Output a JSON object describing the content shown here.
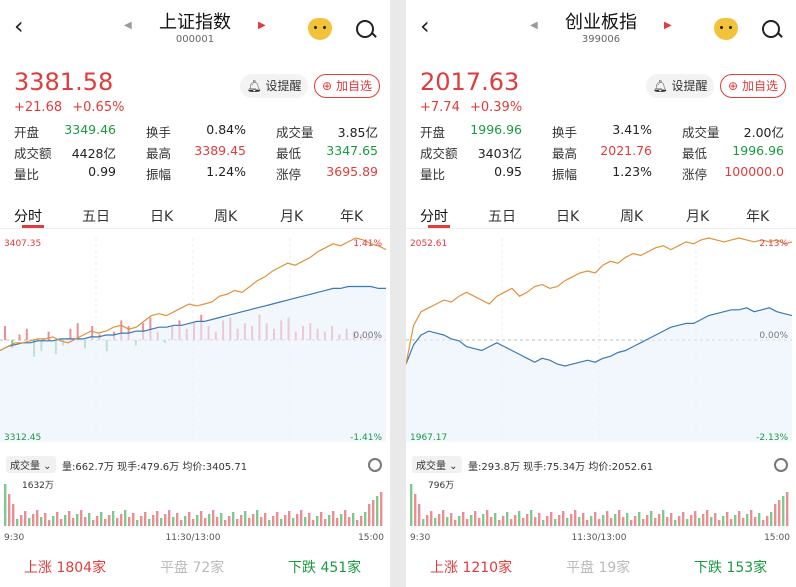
{
  "colors": {
    "up": "#e23b3b",
    "down": "#1a9a3f",
    "line": "#e0913b",
    "avg": "#3a78b8"
  },
  "panels": [
    {
      "title": "上证指数",
      "code": "000001",
      "price": "3381.58",
      "change": "+21.68",
      "change_pct": "+0.65%",
      "remind_label": "设提醒",
      "fav_label": "加自选",
      "stats": [
        [
          {
            "l": "开盘",
            "v": "3349.46",
            "c": "g"
          },
          {
            "l": "换手",
            "v": "0.84%",
            "c": "k"
          },
          {
            "l": "成交量",
            "v": "3.85亿",
            "c": "k"
          }
        ],
        [
          {
            "l": "成交额",
            "v": "4428亿",
            "c": "k"
          },
          {
            "l": "最高",
            "v": "3389.45",
            "c": "r"
          },
          {
            "l": "最低",
            "v": "3347.65",
            "c": "g"
          }
        ],
        [
          {
            "l": "量比",
            "v": "0.99",
            "c": "k"
          },
          {
            "l": "振幅",
            "v": "1.24%",
            "c": "k"
          },
          {
            "l": "涨停",
            "v": "3695.89",
            "c": "r"
          }
        ]
      ],
      "tabs": [
        "分时",
        "五日",
        "日K",
        "周K",
        "月K",
        "年K"
      ],
      "y_top": "3407.35",
      "y_bottom": "3312.45",
      "pct_top": "1.41%",
      "pct_mid": "0.00%",
      "pct_bottom": "-1.41%",
      "vol_label": "成交量",
      "vol_info": "量:662.7万  现手:479.6万  均价:3405.71",
      "vol_max": "1632万",
      "time_start": "9:30",
      "time_mid": "11:30/13:00",
      "time_end": "15:00",
      "up_label": "上涨",
      "up_count": "1804家",
      "flat_label": "平盘",
      "flat_count": "72家",
      "down_label": "下跌",
      "down_count": "451家",
      "price_series": [
        0.42,
        0.44,
        0.46,
        0.46,
        0.47,
        0.48,
        0.48,
        0.49,
        0.47,
        0.46,
        0.48,
        0.5,
        0.52,
        0.51,
        0.52,
        0.54,
        0.55,
        0.53,
        0.54,
        0.57,
        0.6,
        0.61,
        0.6,
        0.62,
        0.64,
        0.66,
        0.65,
        0.66,
        0.67,
        0.7,
        0.71,
        0.73,
        0.72,
        0.75,
        0.78,
        0.8,
        0.83,
        0.85,
        0.87,
        0.86,
        0.88,
        0.9,
        0.93,
        0.95,
        0.97,
        0.96,
        0.98,
        1.0,
        0.99,
        0.97,
        0.96,
        0.94
      ],
      "avg_series": [
        0.42,
        0.44,
        0.45,
        0.46,
        0.46,
        0.47,
        0.47,
        0.47,
        0.48,
        0.48,
        0.48,
        0.48,
        0.49,
        0.49,
        0.5,
        0.5,
        0.51,
        0.51,
        0.52,
        0.52,
        0.53,
        0.54,
        0.54,
        0.55,
        0.55,
        0.56,
        0.57,
        0.57,
        0.58,
        0.59,
        0.6,
        0.61,
        0.62,
        0.63,
        0.64,
        0.65,
        0.66,
        0.67,
        0.68,
        0.69,
        0.7,
        0.71,
        0.72,
        0.73,
        0.74,
        0.74,
        0.75,
        0.75,
        0.75,
        0.75,
        0.74,
        0.74
      ],
      "breadth": [
        0.5,
        -0.3,
        0.2,
        0.4,
        -0.6,
        -0.4,
        0.3,
        -0.5,
        -0.2,
        0.4,
        0.6,
        -0.3,
        0.5,
        0.2,
        -0.4,
        0.3,
        0.7,
        0.5,
        -0.2,
        0.6,
        0.8,
        0.3,
        -0.1,
        0.5,
        0.7,
        0.4,
        0.6,
        0.9,
        0.5,
        0.3,
        0.7,
        0.8,
        0.4,
        0.6,
        0.5,
        0.9,
        0.6,
        0.4,
        0.7,
        0.8,
        0.3,
        0.5,
        0.6,
        0.4,
        0.3,
        0.5,
        0.2,
        0.4,
        0.3,
        0.2,
        0.1,
        0.2
      ]
    },
    {
      "title": "创业板指",
      "code": "399006",
      "price": "2017.63",
      "change": "+7.74",
      "change_pct": "+0.39%",
      "remind_label": "设提醒",
      "fav_label": "加自选",
      "stats": [
        [
          {
            "l": "开盘",
            "v": "1996.96",
            "c": "g"
          },
          {
            "l": "换手",
            "v": "3.41%",
            "c": "k"
          },
          {
            "l": "成交量",
            "v": "2.00亿",
            "c": "k"
          }
        ],
        [
          {
            "l": "成交额",
            "v": "3403亿",
            "c": "k"
          },
          {
            "l": "最高",
            "v": "2021.76",
            "c": "r"
          },
          {
            "l": "最低",
            "v": "1996.96",
            "c": "g"
          }
        ],
        [
          {
            "l": "量比",
            "v": "0.95",
            "c": "k"
          },
          {
            "l": "振幅",
            "v": "1.23%",
            "c": "k"
          },
          {
            "l": "涨停",
            "v": "100000.0",
            "c": "r"
          }
        ]
      ],
      "tabs": [
        "分时",
        "五日",
        "日K",
        "周K",
        "月K",
        "年K"
      ],
      "y_top": "2052.61",
      "y_bottom": "1967.17",
      "pct_top": "2.13%",
      "pct_mid": "0.00%",
      "pct_bottom": "-2.13%",
      "vol_label": "成交量",
      "vol_info": "量:293.8万  现手:75.34万  均价:2052.61",
      "vol_max": "796万",
      "time_start": "9:30",
      "time_mid": "11:30/13:00",
      "time_end": "15:00",
      "up_label": "上涨",
      "up_count": "1210家",
      "flat_label": "平盘",
      "flat_count": "19家",
      "down_label": "下跌",
      "down_count": "153家",
      "price_series": [
        0.35,
        0.55,
        0.62,
        0.64,
        0.66,
        0.68,
        0.67,
        0.7,
        0.72,
        0.7,
        0.68,
        0.66,
        0.7,
        0.72,
        0.74,
        0.7,
        0.72,
        0.75,
        0.76,
        0.74,
        0.75,
        0.78,
        0.8,
        0.82,
        0.83,
        0.82,
        0.86,
        0.88,
        0.87,
        0.9,
        0.92,
        0.91,
        0.93,
        0.95,
        0.96,
        0.94,
        0.96,
        0.98,
        0.97,
        0.99,
        1.0,
        0.99,
        0.98,
        0.99,
        1.0,
        0.99,
        0.98,
        0.99,
        0.98,
        0.99,
        0.97,
        0.98
      ],
      "avg_series": [
        0.35,
        0.45,
        0.5,
        0.52,
        0.51,
        0.5,
        0.48,
        0.47,
        0.44,
        0.43,
        0.42,
        0.44,
        0.46,
        0.44,
        0.42,
        0.4,
        0.38,
        0.36,
        0.38,
        0.37,
        0.35,
        0.34,
        0.35,
        0.36,
        0.37,
        0.36,
        0.38,
        0.39,
        0.41,
        0.42,
        0.44,
        0.46,
        0.48,
        0.5,
        0.52,
        0.54,
        0.55,
        0.56,
        0.56,
        0.58,
        0.6,
        0.61,
        0.62,
        0.63,
        0.63,
        0.64,
        0.62,
        0.63,
        0.64,
        0.62,
        0.61,
        0.6
      ],
      "breadth": []
    }
  ]
}
